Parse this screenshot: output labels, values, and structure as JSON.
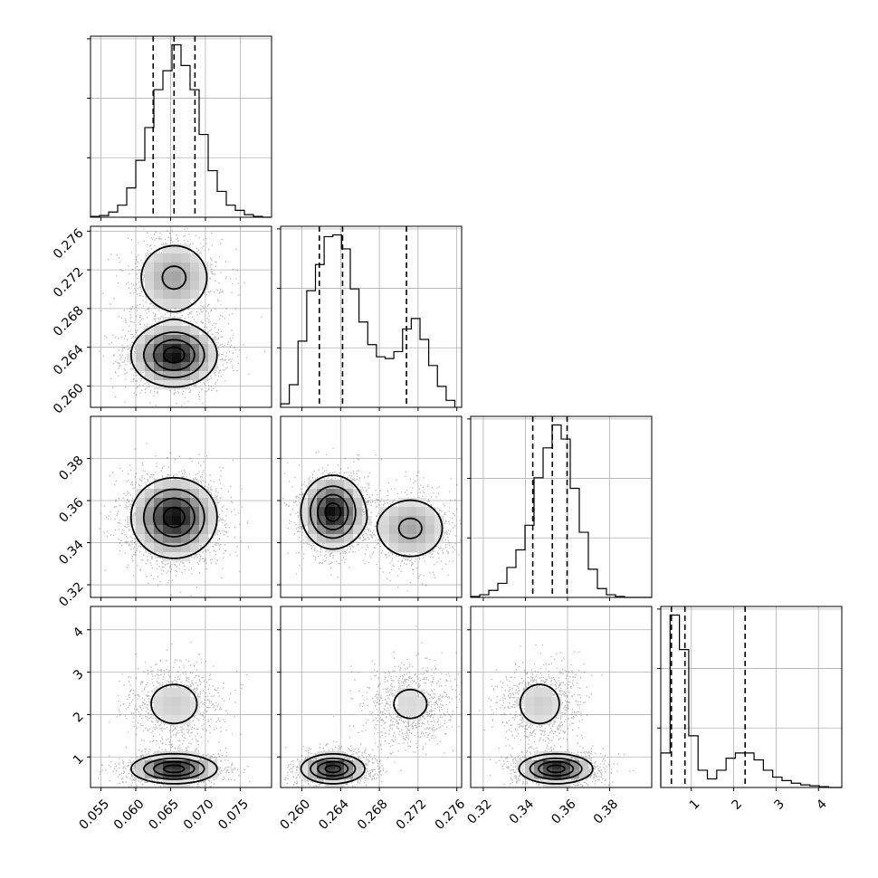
{
  "chart_data": {
    "type": "corner",
    "title": "",
    "grid": true,
    "parameters": [
      {
        "range": [
          0.0535,
          0.0795
        ],
        "ticks": [
          0.055,
          0.06,
          0.065,
          0.07,
          0.075
        ],
        "tick_labels": [
          "0.055",
          "0.060",
          "0.065",
          "0.070",
          "0.075"
        ]
      },
      {
        "range": [
          0.2578,
          0.2765
        ],
        "ticks": [
          0.26,
          0.264,
          0.268,
          0.272,
          0.276
        ],
        "tick_labels": [
          "0.260",
          "0.264",
          "0.268",
          "0.272",
          "0.276"
        ]
      },
      {
        "range": [
          0.314,
          0.4
        ],
        "ticks": [
          0.32,
          0.34,
          0.36,
          0.38
        ],
        "tick_labels": [
          "0.32",
          "0.34",
          "0.36",
          "0.38"
        ]
      },
      {
        "range": [
          0.28,
          4.55
        ],
        "ticks": [
          1,
          2,
          3,
          4
        ],
        "tick_labels": [
          "1",
          "2",
          "3",
          "4"
        ]
      }
    ],
    "histograms": [
      {
        "quantiles": [
          0.0625,
          0.0655,
          0.0685
        ],
        "bins": [
          0.0535,
          0.0548,
          0.0561,
          0.0574,
          0.0587,
          0.06,
          0.0613,
          0.0626,
          0.0639,
          0.0652,
          0.0665,
          0.0678,
          0.0691,
          0.0704,
          0.0717,
          0.073,
          0.0743,
          0.0756,
          0.0769,
          0.0782,
          0.0795
        ],
        "counts": [
          0.5,
          1,
          3,
          7,
          17,
          33,
          52,
          74,
          85,
          100,
          88,
          74,
          48,
          27,
          15,
          7,
          4,
          1.5,
          0.5,
          0
        ]
      },
      {
        "quantiles": [
          0.2618,
          0.2642,
          0.2708
        ],
        "bins": [
          0.2578,
          0.2587,
          0.2596,
          0.2605,
          0.2614,
          0.2623,
          0.2632,
          0.2641,
          0.265,
          0.2659,
          0.2668,
          0.2677,
          0.2686,
          0.2695,
          0.2704,
          0.2713,
          0.2722,
          0.2731,
          0.274,
          0.2749,
          0.2758
        ],
        "counts": [
          2,
          13,
          38,
          67,
          82,
          98,
          99,
          91,
          68,
          49,
          36,
          29,
          28,
          32,
          45,
          51,
          39,
          24,
          12,
          4
        ]
      },
      {
        "quantiles": [
          0.3435,
          0.3528,
          0.3598
        ],
        "bins": [
          0.314,
          0.3183,
          0.3226,
          0.3269,
          0.3312,
          0.3355,
          0.3398,
          0.3441,
          0.3484,
          0.3527,
          0.357,
          0.3613,
          0.3656,
          0.3699,
          0.3742,
          0.3785,
          0.3828,
          0.3871,
          0.3914,
          0.3957,
          0.4
        ],
        "counts": [
          0.5,
          1.5,
          4,
          8,
          17,
          27,
          41,
          68,
          85,
          98,
          90,
          62,
          37,
          16,
          5,
          1.5,
          0.5,
          0,
          0,
          0
        ]
      },
      {
        "quantiles": [
          0.53,
          0.85,
          2.27
        ],
        "bins": [
          0.28,
          0.5,
          0.72,
          0.94,
          1.16,
          1.38,
          1.6,
          1.82,
          2.04,
          2.26,
          2.48,
          2.7,
          2.92,
          3.14,
          3.36,
          3.58,
          3.8,
          4.02,
          4.24,
          4.46,
          4.55
        ],
        "counts": [
          20,
          100,
          80,
          30,
          10,
          5,
          10,
          17,
          20,
          20,
          16,
          10,
          6,
          4,
          2.5,
          1.5,
          1,
          0.5,
          0,
          0
        ]
      }
    ],
    "density_components": [
      {
        "weight": 0.35,
        "mean": [
          0.0655,
          0.2712,
          0.3468,
          2.25
        ],
        "sd": [
          0.003,
          0.0021,
          0.0085,
          0.42
        ]
      },
      {
        "weight": 0.65,
        "mean": [
          0.0655,
          0.2632,
          0.3545,
          0.72
        ],
        "sd": [
          0.003,
          0.0016,
          0.0085,
          0.17
        ]
      }
    ]
  }
}
